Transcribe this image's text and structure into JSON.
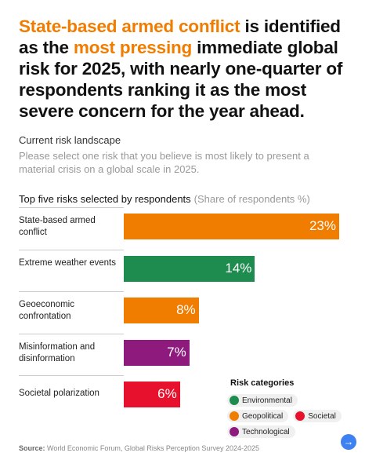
{
  "headline": {
    "parts": [
      {
        "text": "State-based armed conflict",
        "color": "#f07c00"
      },
      {
        "text": " is identified as the ",
        "color": "#111111"
      },
      {
        "text": "most pressing",
        "color": "#f07c00"
      },
      {
        "text": " immediate global risk for 2025, with nearly one-quarter of respondents ranking it as the most severe concern for the year ahead.",
        "color": "#111111"
      }
    ]
  },
  "section_title": "Current risk landscape",
  "question": "Please select one risk that you believe is most likely to present a material crisis on a global scale in 2025.",
  "chart_data": {
    "type": "bar",
    "orientation": "horizontal",
    "title": "Top five risks selected by respondents",
    "subtitle": "(Share of respondents %)",
    "categories": [
      "State-based armed conflict",
      "Extreme weather events",
      "Geoeconomic confrontation",
      "Misinformation and disinformation",
      "Societal polarization"
    ],
    "values": [
      23,
      14,
      8,
      7,
      6
    ],
    "value_labels": [
      "23%",
      "14%",
      "8%",
      "7%",
      "6%"
    ],
    "colors": [
      "#f07c00",
      "#1e8c4e",
      "#f07c00",
      "#8e1a7e",
      "#e8112d"
    ],
    "legend": {
      "title": "Risk categories",
      "items": [
        {
          "name": "Environmental",
          "color": "#1e8c4e"
        },
        {
          "name": "Geopolitical",
          "color": "#f07c00"
        },
        {
          "name": "Societal",
          "color": "#e8112d"
        },
        {
          "name": "Technological",
          "color": "#8e1a7e"
        }
      ]
    }
  },
  "source_label": "Source:",
  "source": "World Economic Forum, Global Risks Perception Survey 2024-2025"
}
